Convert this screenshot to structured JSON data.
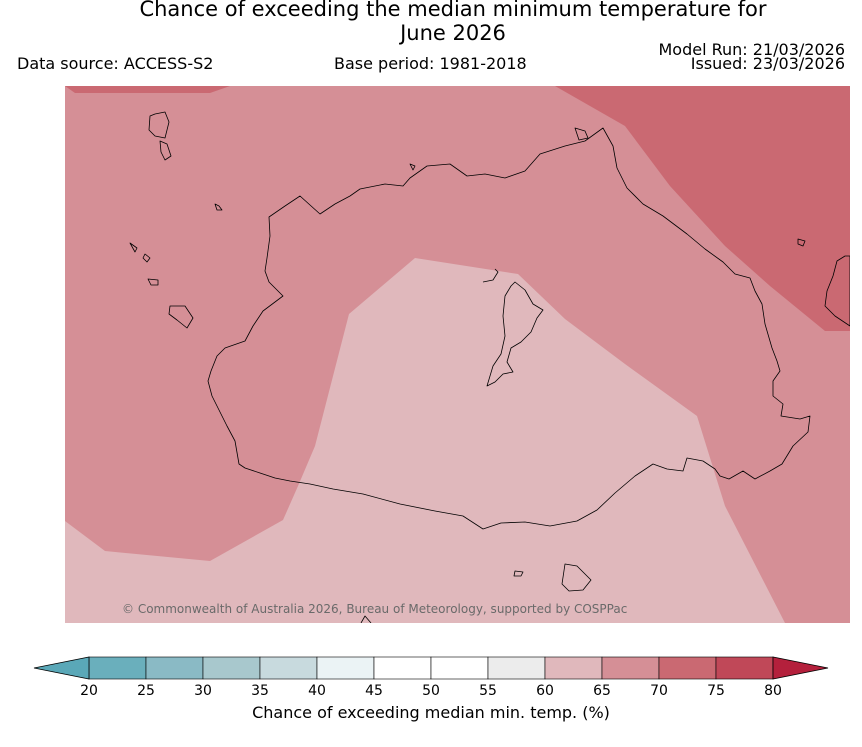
{
  "header": {
    "title_line1": "Chance of exceeding the median minimum temperature for",
    "title_line2": "June 2026",
    "data_source": "Data source: ACCESS-S2",
    "base_period": "Base period: 1981-2018",
    "model_run": "Model Run: 21/03/2026",
    "issued": "Issued: 23/03/2026"
  },
  "map": {
    "copyright": "© Commonwealth of Australia 2026, Bureau of Meteorology, supported by COSPPac",
    "zone_colors": {
      "band_60_65": "#e0b8bc",
      "band_65_70": "#d58f96",
      "band_70_75": "#ca6972"
    }
  },
  "legend": {
    "label": "Chance of exceeding median min. temp. (%)",
    "ticks": [
      "20",
      "25",
      "30",
      "35",
      "40",
      "45",
      "50",
      "55",
      "60",
      "65",
      "70",
      "75",
      "80"
    ],
    "colors": [
      "#6aafbc",
      "#8abac5",
      "#a8c8cd",
      "#c8dade",
      "#ebf3f5",
      "#ffffff",
      "#ffffff",
      "#ececec",
      "#e0b8bc",
      "#d58f96",
      "#ca6972",
      "#c04858"
    ],
    "under_color": "#5aa8b8",
    "over_color": "#b4203c"
  }
}
